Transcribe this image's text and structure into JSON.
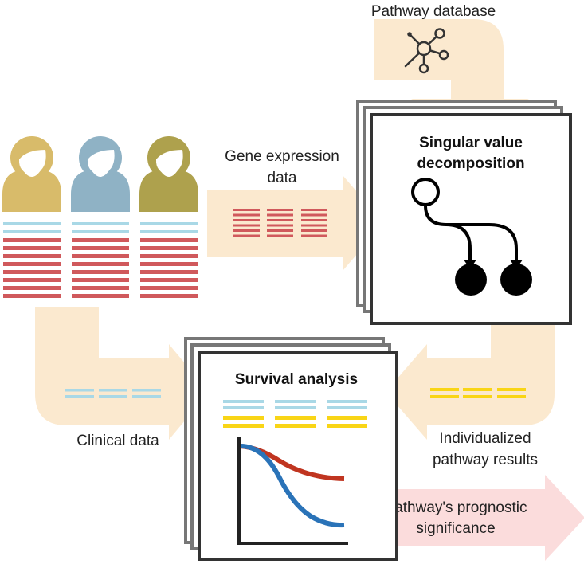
{
  "labels": {
    "pathway_database": "Pathway database",
    "gene_expression_line1": "Gene expression",
    "gene_expression_line2": "data",
    "clinical_data": "Clinical data",
    "individualized_line1": "Individualized",
    "individualized_line2": "pathway results",
    "prognostic_line1": "Pathway's prognostic",
    "prognostic_line2": "significance"
  },
  "boxes": {
    "svd_line1": "Singular value",
    "svd_line2": "decomposition",
    "survival_title": "Survival analysis"
  },
  "patients": [
    {
      "id": "patient-1",
      "color": "#d8bb6a"
    },
    {
      "id": "patient-2",
      "color": "#8fb2c5"
    },
    {
      "id": "patient-3",
      "color": "#aea14d"
    }
  ],
  "colors": {
    "arrow_fill": "#fbe9cf",
    "prognostic_arrow_fill": "#fbdcdc",
    "expression_red": "#d0595c",
    "clinical_blue": "#a9d8e6",
    "pathway_yellow": "#f9d516",
    "survival_red": "#c03520",
    "survival_blue": "#2a73b8",
    "frame_gray": "#777777",
    "frame_dark": "#333333"
  }
}
